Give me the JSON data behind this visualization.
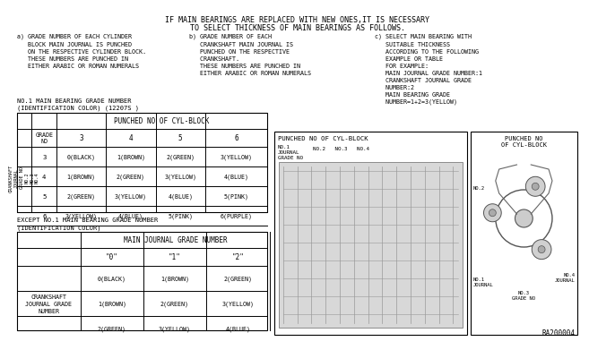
{
  "bg_color": "#ffffff",
  "border_color": "#000000",
  "title_line1": "IF MAIN BEARINGS ARE REPLACED WITH NEW ONES,IT IS NECESSARY",
  "title_line2": "TO SELECT THICKNESS OF MAIN BEARINGS AS FOLLOWS.",
  "section_a": "a) GRADE NUMBER OF EACH CYLINDER\n   BLOCK MAIN JOURNAL IS PUNCHED\n   ON THE RESPECTIVE CYLINDER BLOCK.\n   THESE NUMBERS ARE PUNCHED IN\n   EITHER ARABIC OR ROMAN NUMERALS",
  "section_b": "b) GRADE NUMBER OF EACH\n   CRANKSHAFT MAIN JOURNAL IS\n   PUNCHED ON THE RESPECTIVE\n   CRANKSHAFT.\n   THESE NUMBERS ARE PUNCHED IN\n   EITHER ARABIC OR ROMAN NUMERALS",
  "section_c": "c) SELECT MAIN BEARING WITH\n   SUITABLE THICKNESS\n   ACCORDING TO THE FOLLOWING\n   EXAMPLE OR TABLE\n   FOR EXAMPLE:\n   MAIN JOURNAL GRADE NUMBER:1\n   CRANKSHAFT JOURNAL GRADE\n   NUMBER:2\n   MAIN BEARING GRADE\n   NUMBER=1+2=3(YELLOW)",
  "table1_title1": "NO.1 MAIN BEARING GRADE NUMBER",
  "table1_title2": "(IDENTIFICATION COLOR) (12207S )",
  "table1_cols": [
    "3",
    "4",
    "5",
    "6"
  ],
  "table1_rows": [
    [
      "3",
      "0(BLACK)",
      "1(BROWN)",
      "2(GREEN)",
      "3(YELLOW)"
    ],
    [
      "4",
      "1(BROWN)",
      "2(GREEN)",
      "3(YELLOW)",
      "4(BLUE)"
    ],
    [
      "5",
      "2(GREEN)",
      "3(YELLOW)",
      "4(BLUE)",
      "5(PINK)"
    ],
    [
      "6",
      "3(YELLOW)",
      "4(BLUE)",
      "5(PINK)",
      "6(PURPLE)"
    ]
  ],
  "table2_title1": "EXCEPT NO.1 MAIN BEARING GRADE NUMBER",
  "table2_title2": "(IDENTIFICATION COLOR)",
  "table2_sub_cols": [
    "\"0\"",
    "\"1\"",
    "\"2\""
  ],
  "table2_rows": [
    [
      "0(BLACK)",
      "1(BROWN)",
      "2(GREEN)"
    ],
    [
      "1(BROWN)",
      "2(GREEN)",
      "3(YELLOW)"
    ],
    [
      "2(GREEN)",
      "3(YELLOW)",
      "4(BLUE)"
    ]
  ],
  "ref_no": "RA200004",
  "font_name": "monospace"
}
